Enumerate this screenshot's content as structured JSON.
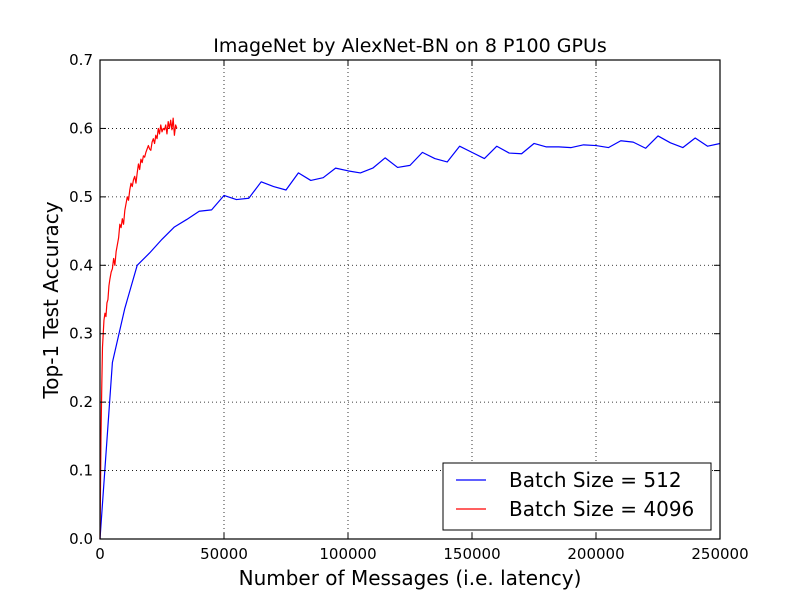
{
  "chart_data": {
    "type": "line",
    "title": "ImageNet by AlexNet-BN on 8 P100 GPUs",
    "xlabel": "Number of Messages (i.e. latency)",
    "ylabel": "Top-1 Test Accuracy",
    "xlim": [
      0,
      250000
    ],
    "ylim": [
      0.0,
      0.7
    ],
    "grid": true,
    "legend_position": "lower-right",
    "x_ticks": [
      "0",
      "50000",
      "100000",
      "150000",
      "200000",
      "250000"
    ],
    "y_ticks": [
      "0.0",
      "0.1",
      "0.2",
      "0.3",
      "0.4",
      "0.5",
      "0.6",
      "0.7"
    ],
    "series": [
      {
        "name": "Batch Size = 512",
        "color": "#0000ff",
        "x": [
          0,
          5000,
          10000,
          15000,
          20000,
          25000,
          30000,
          35000,
          40000,
          45000,
          50000,
          55000,
          60000,
          65000,
          70000,
          75000,
          80000,
          85000,
          90000,
          95000,
          100000,
          105000,
          110000,
          115000,
          120000,
          125000,
          130000,
          135000,
          140000,
          145000,
          150000,
          155000,
          160000,
          165000,
          170000,
          175000,
          180000,
          185000,
          190000,
          195000,
          200000,
          205000,
          210000,
          215000,
          220000,
          225000,
          230000,
          235000,
          240000,
          245000,
          250000
        ],
        "y": [
          0.0,
          0.258,
          0.337,
          0.4,
          0.418,
          0.438,
          0.456,
          0.467,
          0.479,
          0.481,
          0.502,
          0.496,
          0.498,
          0.522,
          0.515,
          0.51,
          0.535,
          0.524,
          0.528,
          0.542,
          0.538,
          0.535,
          0.542,
          0.557,
          0.543,
          0.546,
          0.565,
          0.556,
          0.551,
          0.574,
          0.565,
          0.556,
          0.574,
          0.564,
          0.563,
          0.578,
          0.573,
          0.573,
          0.572,
          0.576,
          0.575,
          0.572,
          0.582,
          0.58,
          0.571,
          0.589,
          0.579,
          0.572,
          0.586,
          0.574,
          0.578
        ]
      },
      {
        "name": "Batch Size = 4096",
        "color": "#ff0000",
        "x": [
          0,
          400,
          700,
          1000,
          1300,
          1600,
          2000,
          2400,
          2800,
          3200,
          3600,
          4000,
          4500,
          5000,
          5500,
          6000,
          6500,
          7000,
          7500,
          8000,
          8500,
          9000,
          9500,
          10000,
          10500,
          11000,
          11500,
          12000,
          12500,
          13000,
          13500,
          14000,
          14500,
          15000,
          15500,
          16000,
          16500,
          17000,
          17500,
          18000,
          18500,
          19000,
          19500,
          20000,
          20500,
          21000,
          21500,
          22000,
          22500,
          23000,
          23500,
          24000,
          24500,
          25000,
          25500,
          26000,
          26500,
          27000,
          27500,
          28000,
          28500,
          29000,
          29500,
          30000,
          30500,
          31000
        ],
        "y": [
          0.0,
          0.15,
          0.22,
          0.28,
          0.3,
          0.32,
          0.33,
          0.325,
          0.345,
          0.35,
          0.37,
          0.38,
          0.39,
          0.395,
          0.41,
          0.4,
          0.42,
          0.43,
          0.44,
          0.46,
          0.455,
          0.468,
          0.46,
          0.48,
          0.49,
          0.5,
          0.495,
          0.51,
          0.52,
          0.515,
          0.525,
          0.53,
          0.52,
          0.535,
          0.548,
          0.54,
          0.555,
          0.55,
          0.56,
          0.558,
          0.565,
          0.57,
          0.575,
          0.57,
          0.568,
          0.58,
          0.585,
          0.578,
          0.59,
          0.585,
          0.6,
          0.592,
          0.605,
          0.595,
          0.6,
          0.598,
          0.605,
          0.592,
          0.61,
          0.6,
          0.612,
          0.598,
          0.615,
          0.59,
          0.605,
          0.6
        ]
      }
    ]
  }
}
